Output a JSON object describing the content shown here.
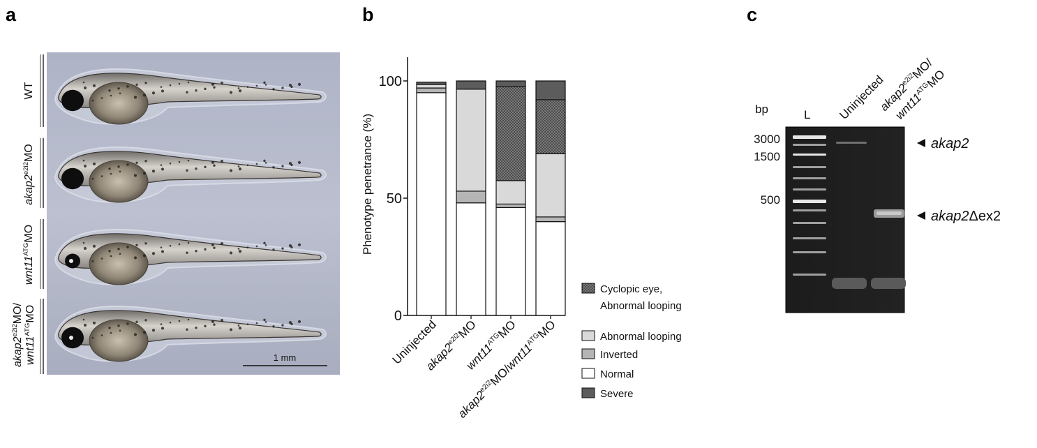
{
  "panels": {
    "a": {
      "label": "a",
      "rows": [
        {
          "parts": [
            {
              "t": "WT"
            }
          ]
        },
        {
          "parts": [
            {
              "t": "akap2",
              "i": true
            },
            {
              "t": "e2i2",
              "sup": true
            },
            {
              "t": "MO"
            }
          ]
        },
        {
          "parts": [
            {
              "t": "wnt11",
              "i": true
            },
            {
              "t": "ATG",
              "sup": true
            },
            {
              "t": "MO"
            }
          ]
        },
        {
          "parts": [
            {
              "t": "akap2",
              "i": true
            },
            {
              "t": "e2i2",
              "sup": true
            },
            {
              "t": "MO/"
            }
          ],
          "parts2": [
            {
              "t": "wnt11",
              "i": true
            },
            {
              "t": "ATG",
              "sup": true
            },
            {
              "t": "MO"
            }
          ]
        }
      ],
      "scale_bar_label": "1 mm"
    },
    "b": {
      "label": "b"
    },
    "c": {
      "label": "c",
      "bp_label": "bp",
      "ladder_label": "L",
      "lane_labels": [
        {
          "parts": [
            {
              "t": "Uninjected"
            }
          ]
        },
        {
          "parts": [
            {
              "t": "akap2",
              "i": true
            },
            {
              "t": "e2i2",
              "sup": true
            },
            {
              "t": "MO/"
            }
          ],
          "parts2": [
            {
              "t": "wnt11",
              "i": true
            },
            {
              "t": "ATG",
              "sup": true
            },
            {
              "t": "MO"
            }
          ]
        }
      ],
      "size_markers": [
        "3000",
        "1500",
        "500"
      ],
      "band_labels": [
        {
          "parts": [
            {
              "t": "akap2",
              "i": true
            }
          ]
        },
        {
          "parts": [
            {
              "t": "akap2",
              "i": true
            },
            {
              "t": "Δex2"
            }
          ]
        }
      ]
    }
  },
  "chart_data": {
    "type": "bar",
    "stacked": true,
    "title": "",
    "ylabel": "Phenotype penetrance (%)",
    "ylim": [
      0,
      100
    ],
    "yticks": [
      0,
      50,
      100
    ],
    "categories": [
      [
        {
          "t": "Uninjected"
        }
      ],
      [
        {
          "t": "akap2",
          "i": true
        },
        {
          "t": "e2i2",
          "sup": true
        },
        {
          "t": "MO"
        }
      ],
      [
        {
          "t": "wnt11",
          "i": true
        },
        {
          "t": "ATG",
          "sup": true
        },
        {
          "t": "MO"
        }
      ],
      [
        {
          "t": "akap2",
          "i": true
        },
        {
          "t": "e2i2",
          "sup": true
        },
        {
          "t": "MO/"
        },
        {
          "t": "wnt11",
          "i": true
        },
        {
          "t": "ATG",
          "sup": true
        },
        {
          "t": "MO"
        }
      ]
    ],
    "series": [
      {
        "name": "Normal",
        "color": "#ffffff",
        "values": [
          95,
          48,
          46,
          40
        ]
      },
      {
        "name": "Inverted",
        "color": "#b5b5b5",
        "values": [
          2,
          5,
          1.5,
          2
        ]
      },
      {
        "name": "Abnormal looping",
        "color": "#d9d9d9",
        "values": [
          1.5,
          43.5,
          10,
          27
        ]
      },
      {
        "name": "Cyclopic eye, Abnormal looping",
        "color": "#555555",
        "pattern": "dots",
        "values": [
          0,
          0,
          40,
          23
        ]
      },
      {
        "name": "Severe",
        "color": "#5c5c5c",
        "values": [
          1,
          3.5,
          2.5,
          8
        ]
      }
    ],
    "legend_order": [
      {
        "lines": [
          "Cyclopic eye,",
          "Abnormal looping"
        ],
        "series": 3
      },
      {
        "lines": [
          "Abnormal looping"
        ],
        "series": 2
      },
      {
        "lines": [
          "Inverted"
        ],
        "series": 1
      },
      {
        "lines": [
          "Normal"
        ],
        "series": 0
      },
      {
        "lines": [
          "Severe"
        ],
        "series": 4
      }
    ]
  }
}
